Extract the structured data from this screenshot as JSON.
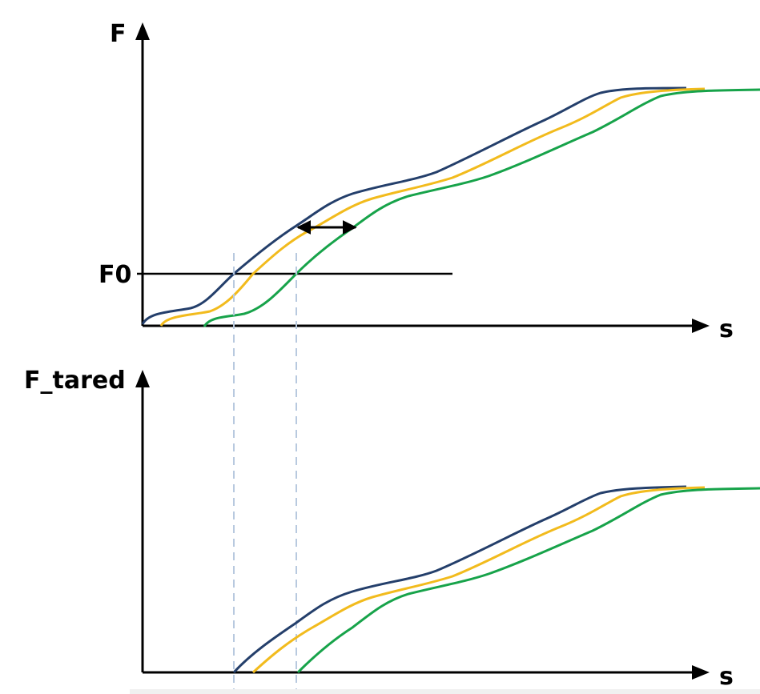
{
  "top_panel": {
    "y_axis_label": "F",
    "x_axis_label": "s",
    "threshold_label": "F0"
  },
  "bottom_panel": {
    "y_axis_label": "F_tared",
    "x_axis_label": "s"
  },
  "colors": {
    "curve_1": "#243f6b",
    "curve_2": "#f2bb1d",
    "curve_3": "#17a34a",
    "axis": "#000000",
    "guide_line": "#b8c9df"
  },
  "curves": [
    {
      "name": "",
      "color_key": "curve_1"
    },
    {
      "name": "",
      "color_key": "curve_2"
    },
    {
      "name": "",
      "color_key": "curve_3"
    }
  ]
}
